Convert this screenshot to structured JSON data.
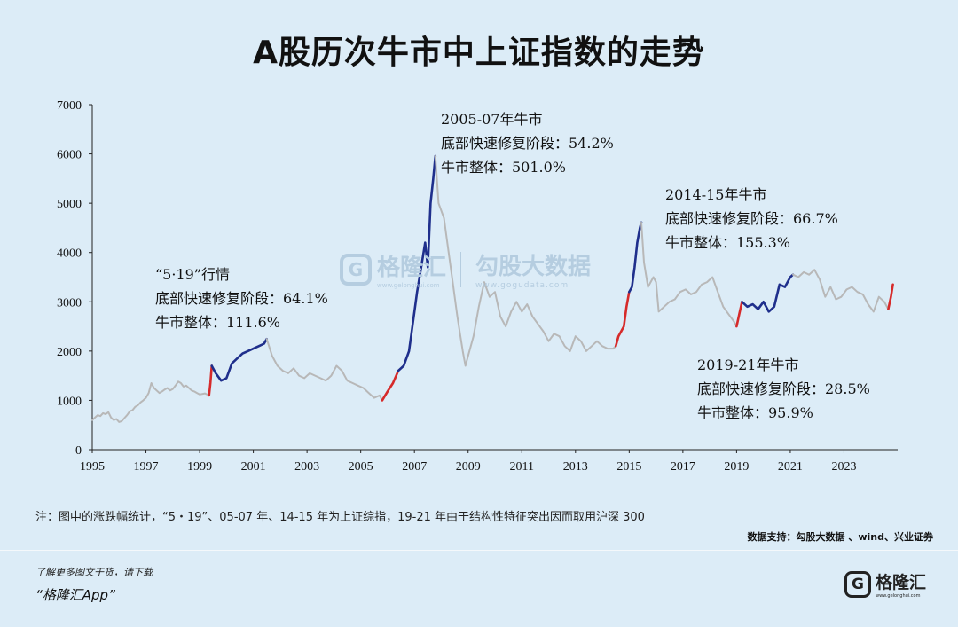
{
  "title": "A股历次牛市中上证指数的走势",
  "chart_data": {
    "type": "line",
    "ylim": [
      0,
      7000
    ],
    "xlim": [
      1995,
      2025
    ],
    "yticks": [
      0,
      1000,
      2000,
      3000,
      4000,
      5000,
      6000,
      7000
    ],
    "xticks": [
      "1995",
      "1997",
      "1999",
      "2001",
      "2003",
      "2005",
      "2007",
      "2009",
      "2011",
      "2013",
      "2015",
      "2017",
      "2019",
      "2021",
      "2023"
    ],
    "colors": {
      "base": "#b8b8b8",
      "recovery": "#d62a2a",
      "bull": "#1f2f8c"
    },
    "series": [
      {
        "x": [
          1995.0,
          1995.1,
          1995.2,
          1995.3,
          1995.4,
          1995.5,
          1995.6,
          1995.7,
          1995.8,
          1995.9,
          1996.0,
          1996.1,
          1996.2,
          1996.3,
          1996.4,
          1996.5,
          1996.6,
          1996.7,
          1996.8,
          1996.9,
          1997.0,
          1997.1,
          1997.2,
          1997.3,
          1997.4,
          1997.5,
          1997.6,
          1997.7,
          1997.8,
          1997.9,
          1998.0,
          1998.1,
          1998.2,
          1998.3,
          1998.4,
          1998.5,
          1998.6,
          1998.7,
          1998.8,
          1998.9,
          1999.0,
          1999.2,
          1999.35
        ],
        "y": [
          600,
          650,
          700,
          680,
          740,
          720,
          760,
          650,
          600,
          620,
          560,
          580,
          640,
          700,
          780,
          800,
          870,
          900,
          960,
          1000,
          1050,
          1150,
          1350,
          1250,
          1200,
          1150,
          1180,
          1220,
          1250,
          1200,
          1230,
          1300,
          1380,
          1350,
          1280,
          1300,
          1250,
          1200,
          1180,
          1150,
          1120,
          1140,
          1100
        ]
      },
      {
        "x": [
          1999.35,
          1999.4,
          1999.45
        ],
        "y": [
          1100,
          1350,
          1700
        ]
      },
      {
        "x": [
          1999.45,
          1999.6,
          1999.8,
          2000.0,
          2000.2,
          2000.4,
          2000.6,
          2000.8,
          2001.0,
          2001.2,
          2001.4,
          2001.5
        ],
        "y": [
          1700,
          1550,
          1400,
          1450,
          1750,
          1850,
          1950,
          2000,
          2050,
          2100,
          2150,
          2245
        ]
      },
      {
        "x": [
          2001.5,
          2001.7,
          2001.9,
          2002.1,
          2002.3,
          2002.5,
          2002.7,
          2002.9,
          2003.1,
          2003.3,
          2003.5,
          2003.7,
          2003.9,
          2004.1,
          2004.3,
          2004.5,
          2004.7,
          2004.9,
          2005.1,
          2005.3,
          2005.5,
          2005.7,
          2005.8
        ],
        "y": [
          2245,
          1900,
          1700,
          1600,
          1550,
          1650,
          1500,
          1450,
          1550,
          1500,
          1450,
          1400,
          1500,
          1700,
          1600,
          1400,
          1350,
          1300,
          1250,
          1150,
          1050,
          1100,
          1000
        ]
      },
      {
        "x": [
          2005.8,
          2006.0,
          2006.2,
          2006.4
        ],
        "y": [
          1000,
          1180,
          1350,
          1600
        ]
      },
      {
        "x": [
          2006.4,
          2006.6,
          2006.8,
          2007.0,
          2007.1,
          2007.25,
          2007.4,
          2007.5,
          2007.6,
          2007.7,
          2007.78
        ],
        "y": [
          1600,
          1700,
          2000,
          2800,
          3200,
          3700,
          4200,
          3700,
          5000,
          5500,
          5954
        ]
      },
      {
        "x": [
          2007.78,
          2007.9,
          2008.1,
          2008.2,
          2008.4,
          2008.6,
          2008.8,
          2008.9,
          2009.0,
          2009.2,
          2009.4,
          2009.6,
          2009.8,
          2010.0,
          2010.2,
          2010.4,
          2010.6,
          2010.8,
          2011.0,
          2011.2,
          2011.4,
          2011.6,
          2011.8,
          2012.0,
          2012.2,
          2012.4,
          2012.6,
          2012.8,
          2013.0,
          2013.2,
          2013.4,
          2013.6,
          2013.8,
          2014.0,
          2014.2,
          2014.4,
          2014.5
        ],
        "y": [
          5954,
          5000,
          4700,
          4300,
          3500,
          2700,
          2000,
          1700,
          1900,
          2300,
          2900,
          3400,
          3100,
          3200,
          2700,
          2500,
          2800,
          3000,
          2800,
          2950,
          2700,
          2550,
          2400,
          2200,
          2350,
          2300,
          2100,
          2000,
          2300,
          2200,
          2000,
          2100,
          2200,
          2100,
          2050,
          2050,
          2100
        ]
      },
      {
        "x": [
          2014.5,
          2014.6,
          2014.8,
          2014.9,
          2015.0
        ],
        "y": [
          2100,
          2300,
          2500,
          2900,
          3200
        ]
      },
      {
        "x": [
          2015.0,
          2015.1,
          2015.2,
          2015.3,
          2015.4,
          2015.45
        ],
        "y": [
          3200,
          3300,
          3700,
          4200,
          4500,
          4611
        ]
      },
      {
        "x": [
          2015.45,
          2015.55,
          2015.7,
          2015.9,
          2016.0,
          2016.1,
          2016.3,
          2016.5,
          2016.7,
          2016.9,
          2017.1,
          2017.3,
          2017.5,
          2017.7,
          2017.9,
          2018.1,
          2018.3,
          2018.5,
          2018.7,
          2018.9,
          2019.0
        ],
        "y": [
          4611,
          3800,
          3300,
          3500,
          3400,
          2800,
          2900,
          3000,
          3050,
          3200,
          3250,
          3150,
          3200,
          3350,
          3400,
          3500,
          3200,
          2900,
          2750,
          2600,
          2500
        ]
      },
      {
        "x": [
          2019.0,
          2019.1,
          2019.2
        ],
        "y": [
          2500,
          2750,
          3000
        ]
      },
      {
        "x": [
          2019.2,
          2019.4,
          2019.6,
          2019.8,
          2020.0,
          2020.2,
          2020.4,
          2020.6,
          2020.8,
          2021.0,
          2021.1
        ],
        "y": [
          3000,
          2900,
          2950,
          2850,
          3000,
          2800,
          2900,
          3350,
          3300,
          3500,
          3550
        ]
      },
      {
        "x": [
          2021.1,
          2021.3,
          2021.5,
          2021.7,
          2021.9,
          2022.1,
          2022.3,
          2022.5,
          2022.7,
          2022.9,
          2023.1,
          2023.3,
          2023.5,
          2023.7,
          2023.9,
          2024.1,
          2024.3,
          2024.5,
          2024.65
        ],
        "y": [
          3550,
          3500,
          3600,
          3550,
          3650,
          3450,
          3100,
          3300,
          3050,
          3100,
          3250,
          3300,
          3200,
          3150,
          2950,
          2800,
          3100,
          3000,
          2850
        ]
      },
      {
        "x": [
          2024.65,
          2024.75,
          2024.82
        ],
        "y": [
          2850,
          3100,
          3350
        ]
      }
    ],
    "series_style": [
      "base",
      "recovery",
      "bull",
      "base",
      "recovery",
      "bull",
      "base",
      "recovery",
      "bull",
      "base",
      "recovery",
      "bull",
      "base",
      "recovery"
    ],
    "annotations": [
      {
        "lines": [
          "“5·19”行情",
          "底部快速修复阶段：64.1%",
          "牛市整体：111.6%"
        ]
      },
      {
        "lines": [
          "2005-07年牛市",
          "底部快速修复阶段：54.2%",
          "牛市整体：501.0%"
        ]
      },
      {
        "lines": [
          "2014-15年牛市",
          "底部快速修复阶段：66.7%",
          "牛市整体：155.3%"
        ]
      },
      {
        "lines": [
          "2019-21年牛市",
          "底部快速修复阶段：28.5%",
          "牛市整体：95.9%"
        ]
      }
    ]
  },
  "watermark": {
    "brand": "格隆汇",
    "brand_url": "www.gelonghui.com",
    "partner": "勾股大数据",
    "partner_url": "www.gogudata.com"
  },
  "note": "注：图中的涨跌幅统计，“5・19”、05-07 年、14-15 年为上证综指，19-21 年由于结构性特征突出因而取用沪深 300",
  "source": "数据支持：勾股大数据 、wind、兴业证券",
  "footer": {
    "line1": "了解更多图文干货，请下载",
    "line2": "“格隆汇App”"
  },
  "logo": {
    "text": "格隆汇",
    "url": "www.gelonghui.com"
  }
}
